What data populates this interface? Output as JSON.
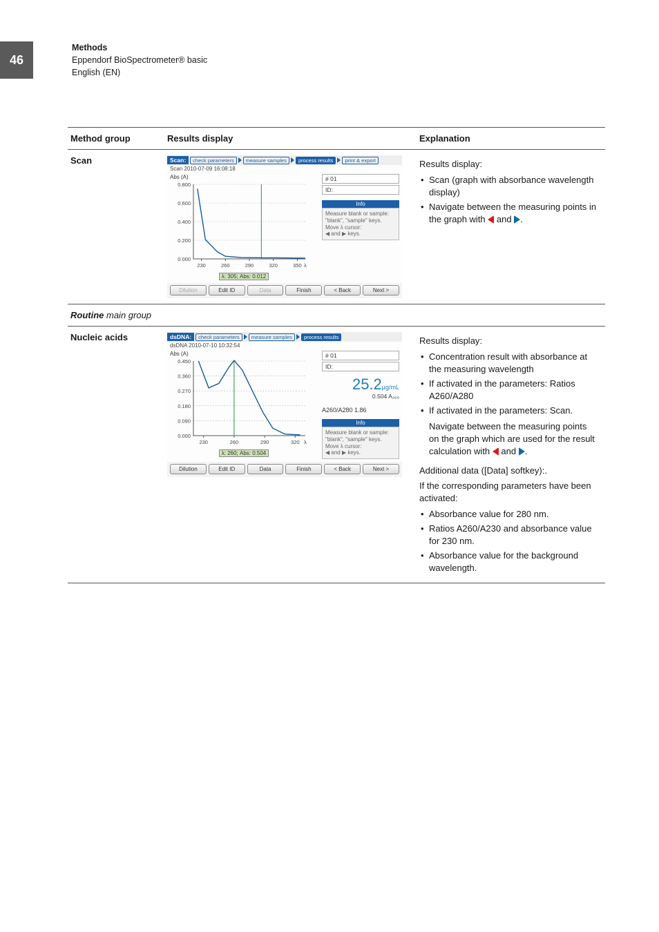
{
  "page": {
    "number": "46",
    "header_title": "Methods",
    "header_sub": "Eppendorf BioSpectrometer® basic",
    "header_lang": "English (EN)"
  },
  "columns": {
    "method_group": "Method group",
    "results_display": "Results display",
    "explanation": "Explanation"
  },
  "arrow_colors": {
    "left": "#d11e1e",
    "right": "#0a6aa8"
  },
  "rows": {
    "scan": {
      "label": "Scan",
      "exp_heading": "Results display:",
      "bullets": [
        "Scan (graph with absorbance wavelength display)",
        "Navigate between the measuring points in the graph with {L} and {R}."
      ]
    },
    "routine_group": {
      "prefix_italic_bold": "Routine",
      "suffix": " main group"
    },
    "nucleic": {
      "label": "Nucleic acids",
      "exp_heading": "Results display:",
      "bullets": [
        "Concentration result with absorbance at the measuring wavelength",
        "If activated in the parameters: Ratios A260/A280",
        "If activated in the parameters: Scan."
      ],
      "nav_para": "Navigate between the measuring points on the graph which are used for the result calculation with {L} and {R}.",
      "add_heading": "Additional data ([Data] softkey):.",
      "add_sub": "If the corresponding parameters have been activated:",
      "add_bullets": [
        "Absorbance value for 280 nm.",
        "Ratios A260/A230 and absorbance value for 230 nm.",
        "Absorbance value for the background wavelength."
      ]
    }
  },
  "shot_scan": {
    "app": "Scan:",
    "tabs": [
      "check parameters",
      "measure samples",
      "process results",
      "print & export"
    ],
    "active_tab_index": 2,
    "timestamp": "Scan 2010-07-09 16:08:18",
    "ylabel": "Abs (A)",
    "yticks": [
      "0.800",
      "0.600",
      "0.400",
      "0.200",
      "0.000"
    ],
    "xticks": [
      "230",
      "260",
      "290",
      "320",
      "350"
    ],
    "xlabel": "λ (nm)",
    "xlim": [
      220,
      360
    ],
    "ylim": [
      0,
      0.85
    ],
    "curve": [
      [
        225,
        0.8
      ],
      [
        235,
        0.22
      ],
      [
        250,
        0.08
      ],
      [
        260,
        0.03
      ],
      [
        280,
        0.015
      ],
      [
        300,
        0.013
      ],
      [
        320,
        0.012
      ],
      [
        340,
        0.01
      ],
      [
        360,
        0.008
      ]
    ],
    "cursor_x": 305,
    "readout": "λ: 305; Abs: 0.012",
    "sample_no": "# 01",
    "id_label": "ID:",
    "info_title": "Info",
    "info_body": "Measure blank or sample:\n\"blank\", \"sample\" keys.\nMove λ cursor:\n◀ and ▶ keys.",
    "buttons": [
      "Dilution",
      "Edit ID",
      "Data",
      "Finish",
      "< Back",
      "Next >"
    ],
    "buttons_disabled": [
      0,
      2
    ],
    "line_color": "#165a98",
    "grid_color": "#b8b8b8",
    "axis_color": "#555555"
  },
  "shot_nucleic": {
    "app": "dsDNA:",
    "tabs": [
      "check parameters",
      "measure samples",
      "process results"
    ],
    "active_tab_index": 2,
    "timestamp": "dsDNA 2010-07-10 10:32:54",
    "ylabel": "Abs (A)",
    "yticks": [
      "0.450",
      "0.360",
      "0.270",
      "0.180",
      "0.090",
      "0.000"
    ],
    "xticks": [
      "230",
      "260",
      "290",
      "320"
    ],
    "xlabel": "λ (nm)",
    "xlim": [
      220,
      330
    ],
    "ylim": [
      0,
      0.5
    ],
    "curve": [
      [
        225,
        0.5
      ],
      [
        235,
        0.32
      ],
      [
        245,
        0.35
      ],
      [
        255,
        0.46
      ],
      [
        260,
        0.504
      ],
      [
        268,
        0.44
      ],
      [
        278,
        0.3
      ],
      [
        288,
        0.16
      ],
      [
        298,
        0.05
      ],
      [
        310,
        0.01
      ],
      [
        325,
        0.005
      ]
    ],
    "cursor_x": 260,
    "readout": "λ: 260; Abs: 0.504",
    "sample_no": "# 01",
    "id_label": "ID:",
    "conc_value": "25.2",
    "conc_unit": "µg/mL",
    "sub_abs": "0.504 A₂₆₀",
    "ratio_label": "A260/A280",
    "ratio_value": "1.86",
    "info_title": "Info",
    "info_body": "Measure blank or sample:\n\"blank\", \"sample\" keys.\nMove λ cursor:\n◀ and ▶ keys.",
    "buttons": [
      "Dilution",
      "Edit ID",
      "Data",
      "Finish",
      "< Back",
      "Next >"
    ],
    "buttons_disabled": [],
    "line_color": "#165a98",
    "grid_color": "#b8b8b8",
    "axis_color": "#555555"
  }
}
